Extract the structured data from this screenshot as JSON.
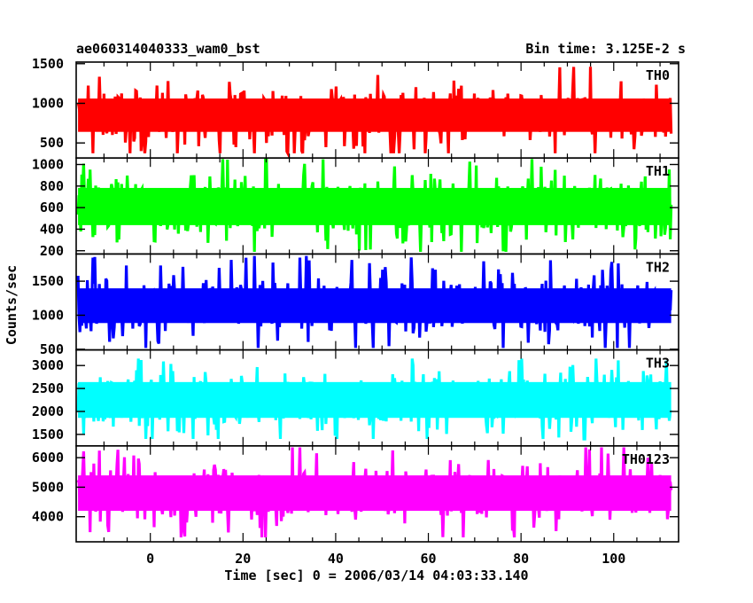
{
  "chart_data": {
    "type": "line",
    "title": "ae060314040333_wam0_bst",
    "subtitle": "Bin time: 3.125E-2 s",
    "xlabel": "Time [sec] 0 = 2006/03/14 04:03:33.140",
    "ylabel": "Counts/sec",
    "xlim": [
      -16,
      114
    ],
    "x_range_data": [
      -15.6,
      112.4
    ],
    "x_ticks": [
      0,
      20,
      40,
      60,
      80,
      100
    ],
    "grid": false,
    "legend": "none",
    "panels": [
      {
        "name": "TH0",
        "color": "#ff0000",
        "ylim": [
          310,
          1520
        ],
        "y_ticks": [
          500,
          1000,
          1500
        ],
        "mean": 850,
        "core_half_width": 280,
        "spike_max": 1500,
        "spike_min": 370
      },
      {
        "name": "TH1",
        "color": "#00ff00",
        "ylim": [
          170,
          1060
        ],
        "y_ticks": [
          200,
          400,
          600,
          800,
          1000
        ],
        "mean": 610,
        "core_half_width": 230,
        "spike_max": 1050,
        "spike_min": 190
      },
      {
        "name": "TH2",
        "color": "#0000ff",
        "ylim": [
          490,
          1900
        ],
        "y_ticks": [
          500,
          1000,
          1500
        ],
        "mean": 1140,
        "core_half_width": 340,
        "spike_max": 1870,
        "spike_min": 520
      },
      {
        "name": "TH3",
        "color": "#00ffff",
        "ylim": [
          1250,
          3340
        ],
        "y_ticks": [
          1500,
          2000,
          2500,
          3000
        ],
        "mean": 2250,
        "core_half_width": 520,
        "spike_max": 3150,
        "spike_min": 1400
      },
      {
        "name": "TH0123",
        "color": "#ff00ff",
        "ylim": [
          3150,
          6400
        ],
        "y_ticks": [
          4000,
          5000,
          6000
        ],
        "mean": 4800,
        "core_half_width": 800,
        "spike_max": 6350,
        "spike_min": 3300
      }
    ]
  }
}
